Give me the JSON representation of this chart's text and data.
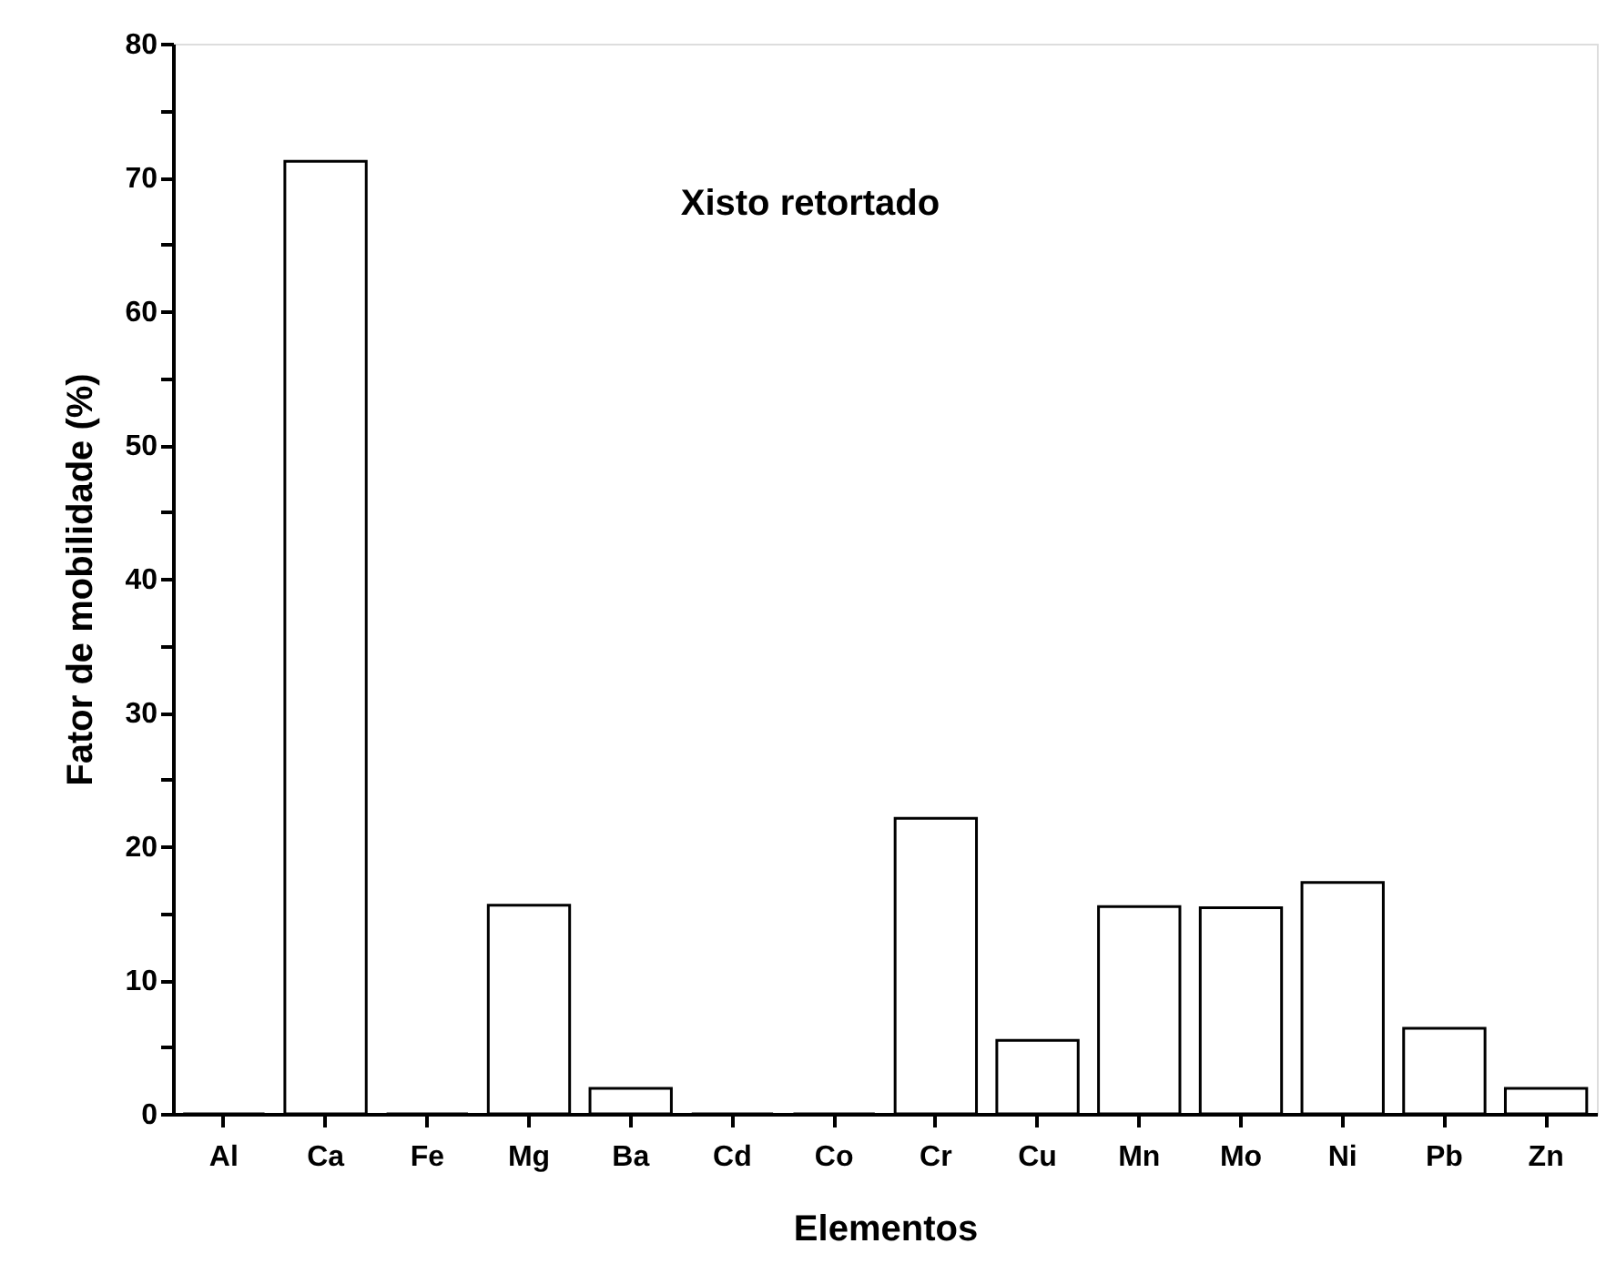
{
  "chart_data": {
    "type": "bar",
    "xlabel": "Elementos",
    "ylabel": "Fator de mobilidade (%)",
    "annotations": [
      "Xisto retortado"
    ],
    "categories": [
      "Al",
      "Ca",
      "Fe",
      "Mg",
      "Ba",
      "Cd",
      "Co",
      "Cr",
      "Cu",
      "Mn",
      "Mo",
      "Ni",
      "Pb",
      "Zn"
    ],
    "values": [
      0,
      71.2,
      0,
      15.6,
      1.9,
      0,
      0,
      22.1,
      5.5,
      15.5,
      15.4,
      17.3,
      6.4,
      1.9
    ],
    "ylim": [
      0,
      80
    ],
    "yticks": [
      0,
      {
        "value": 5,
        "label": null
      },
      10,
      {
        "value": 15,
        "label": null
      },
      20,
      {
        "value": 25,
        "label": null
      },
      30,
      {
        "value": 35,
        "label": null
      },
      40,
      {
        "value": 45,
        "label": null
      },
      50,
      {
        "value": 55,
        "label": null
      },
      60,
      {
        "value": 65,
        "label": null
      },
      70,
      {
        "value": 75,
        "label": null
      },
      80
    ],
    "grid": false
  }
}
